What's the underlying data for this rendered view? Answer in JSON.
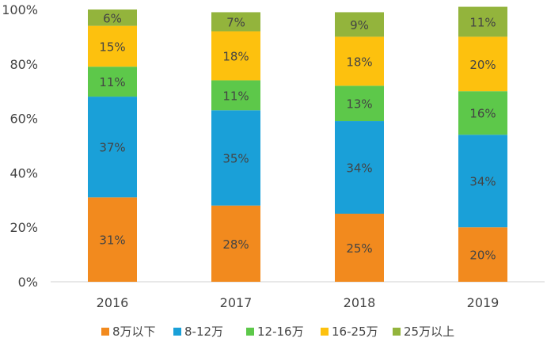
{
  "chart_data": {
    "type": "bar",
    "stacked": true,
    "categories": [
      "2016",
      "2017",
      "2018",
      "2019"
    ],
    "series": [
      {
        "name": "8万以下",
        "color": "#F28A1E",
        "values": [
          31,
          28,
          25,
          20
        ],
        "labels": [
          "31%",
          "28%",
          "25%",
          "20%"
        ]
      },
      {
        "name": "8-12万",
        "color": "#1AA0D8",
        "values": [
          37,
          35,
          34,
          34
        ],
        "labels": [
          "37%",
          "35%",
          "34%",
          "34%"
        ]
      },
      {
        "name": "12-16万",
        "color": "#5DC84A",
        "values": [
          11,
          11,
          13,
          16
        ],
        "labels": [
          "11%",
          "11%",
          "13%",
          "16%"
        ]
      },
      {
        "name": "16-25万",
        "color": "#FDC10E",
        "values": [
          15,
          18,
          18,
          20
        ],
        "labels": [
          "15%",
          "18%",
          "18%",
          "20%"
        ]
      },
      {
        "name": "25万以上",
        "color": "#93B43C",
        "values": [
          6,
          7,
          9,
          11
        ],
        "labels": [
          "6%",
          "7%",
          "9%",
          "11%"
        ]
      }
    ],
    "yticks": [
      "0%",
      "20%",
      "40%",
      "60%",
      "80%",
      "100%"
    ],
    "ylim": [
      0,
      100
    ],
    "grid": false,
    "legend_position": "bottom"
  }
}
